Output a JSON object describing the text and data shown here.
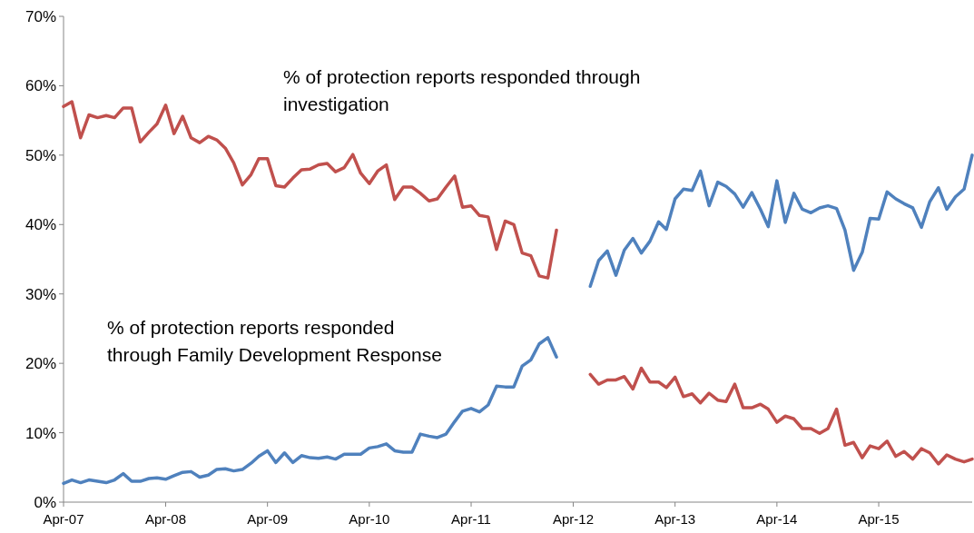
{
  "chart_data": {
    "type": "line",
    "x": [
      "2007-04",
      "2007-05",
      "2007-06",
      "2007-07",
      "2007-08",
      "2007-09",
      "2007-10",
      "2007-11",
      "2007-12",
      "2008-01",
      "2008-02",
      "2008-03",
      "2008-04",
      "2008-05",
      "2008-06",
      "2008-07",
      "2008-08",
      "2008-09",
      "2008-10",
      "2008-11",
      "2008-12",
      "2009-01",
      "2009-02",
      "2009-03",
      "2009-04",
      "2009-05",
      "2009-06",
      "2009-07",
      "2009-08",
      "2009-09",
      "2009-10",
      "2009-11",
      "2009-12",
      "2010-01",
      "2010-02",
      "2010-03",
      "2010-04",
      "2010-05",
      "2010-06",
      "2010-07",
      "2010-08",
      "2010-09",
      "2010-10",
      "2010-11",
      "2010-12",
      "2011-01",
      "2011-02",
      "2011-03",
      "2011-04",
      "2011-05",
      "2011-06",
      "2011-07",
      "2011-08",
      "2011-09",
      "2011-10",
      "2011-11",
      "2011-12",
      "2012-01",
      "2012-02",
      "2012-03",
      "2012-04",
      "2012-05",
      "2012-06",
      "2012-07",
      "2012-08",
      "2012-09",
      "2012-10",
      "2012-11",
      "2012-12",
      "2013-01",
      "2013-02",
      "2013-03",
      "2013-04",
      "2013-05",
      "2013-06",
      "2013-07",
      "2013-08",
      "2013-09",
      "2013-10",
      "2013-11",
      "2013-12",
      "2014-01",
      "2014-02",
      "2014-03",
      "2014-04",
      "2014-05",
      "2014-06",
      "2014-07",
      "2014-08",
      "2014-09",
      "2014-10",
      "2014-11",
      "2014-12",
      "2015-01",
      "2015-02",
      "2015-03",
      "2015-04",
      "2015-05",
      "2015-06",
      "2015-07",
      "2015-08",
      "2015-09",
      "2015-10",
      "2015-11",
      "2015-12",
      "2016-01",
      "2016-02",
      "2016-03"
    ],
    "series": [
      {
        "color": "#c0504d",
        "values": [
          57.0,
          57.7,
          52.5,
          55.8,
          55.4,
          55.7,
          55.4,
          56.8,
          56.8,
          51.9,
          53.3,
          54.5,
          57.2,
          53.1,
          55.6,
          52.5,
          51.8,
          52.7,
          52.2,
          51.0,
          48.9,
          45.7,
          47.2,
          49.5,
          49.5,
          45.6,
          45.4,
          46.7,
          47.9,
          48.0,
          48.6,
          48.8,
          47.6,
          48.2,
          50.1,
          47.4,
          45.9,
          47.7,
          48.6,
          43.6,
          45.4,
          45.4,
          44.5,
          43.4,
          43.7,
          45.4,
          47.0,
          42.5,
          42.7,
          41.3,
          41.1,
          36.4,
          40.5,
          40.0,
          35.9,
          35.5,
          32.6,
          32.3,
          39.2,
          null,
          null,
          null,
          18.4,
          17.0,
          17.6,
          17.6,
          18.1,
          16.3,
          19.3,
          17.3,
          17.3,
          16.5,
          18.0,
          15.2,
          15.6,
          14.3,
          15.7,
          14.7,
          14.5,
          17.0,
          13.6,
          13.6,
          14.1,
          13.4,
          11.5,
          12.4,
          12.0,
          10.6,
          10.6,
          9.9,
          10.6,
          13.4,
          8.2,
          8.6,
          6.4,
          8.1,
          7.7,
          8.8,
          6.6,
          7.3,
          6.2,
          7.7,
          7.1,
          5.5,
          6.8,
          6.2,
          5.8,
          6.2
        ]
      },
      {
        "color": "#4f81bd",
        "values": [
          2.7,
          3.2,
          2.8,
          3.2,
          3.0,
          2.8,
          3.2,
          4.1,
          3.0,
          3.0,
          3.4,
          3.5,
          3.3,
          3.8,
          4.3,
          4.4,
          3.6,
          3.9,
          4.7,
          4.8,
          4.5,
          4.7,
          5.6,
          6.6,
          7.4,
          5.7,
          7.1,
          5.7,
          6.7,
          6.4,
          6.3,
          6.5,
          6.2,
          6.9,
          6.9,
          6.9,
          7.8,
          8.0,
          8.4,
          7.4,
          7.2,
          7.2,
          9.8,
          9.5,
          9.3,
          9.8,
          11.6,
          13.1,
          13.5,
          13.0,
          14.0,
          16.7,
          16.6,
          16.6,
          19.6,
          20.5,
          22.8,
          23.7,
          20.9,
          null,
          null,
          null,
          31.1,
          34.8,
          36.2,
          32.7,
          36.3,
          38.0,
          35.9,
          37.6,
          40.4,
          39.3,
          43.7,
          45.1,
          44.9,
          47.7,
          42.7,
          46.1,
          45.5,
          44.4,
          42.5,
          44.6,
          42.2,
          39.7,
          46.3,
          40.3,
          44.5,
          42.2,
          41.7,
          42.4,
          42.7,
          42.3,
          39.2,
          33.4,
          36.0,
          40.9,
          40.8,
          44.7,
          43.7,
          43.0,
          42.4,
          39.6,
          43.3,
          45.3,
          42.2,
          44.0,
          45.1,
          50.0
        ]
      }
    ],
    "xlim": [
      "2007-04",
      "2016-03"
    ],
    "xticks": [
      {
        "value": "2007-04",
        "label": "Apr-07"
      },
      {
        "value": "2008-04",
        "label": "Apr-08"
      },
      {
        "value": "2009-04",
        "label": "Apr-09"
      },
      {
        "value": "2010-04",
        "label": "Apr-10"
      },
      {
        "value": "2011-04",
        "label": "Apr-11"
      },
      {
        "value": "2012-04",
        "label": "Apr-12"
      },
      {
        "value": "2013-04",
        "label": "Apr-13"
      },
      {
        "value": "2014-04",
        "label": "Apr-14"
      },
      {
        "value": "2015-04",
        "label": "Apr-15"
      }
    ],
    "ylim": [
      0,
      70
    ],
    "yticks": [
      {
        "value": 0,
        "label": "0%"
      },
      {
        "value": 10,
        "label": "10%"
      },
      {
        "value": 20,
        "label": "20%"
      },
      {
        "value": 30,
        "label": "30%"
      },
      {
        "value": 40,
        "label": "40%"
      },
      {
        "value": 50,
        "label": "50%"
      },
      {
        "value": 60,
        "label": "60%"
      },
      {
        "value": 70,
        "label": "70%"
      }
    ],
    "annotations": [
      "% of protection reports responded through investigation",
      "% of protection reports responded through Family Development Response"
    ]
  }
}
